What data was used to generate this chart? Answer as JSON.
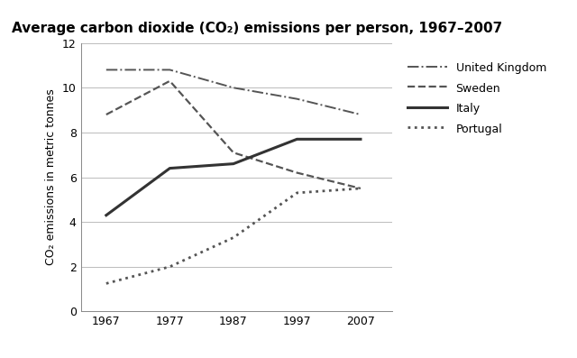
{
  "title": "Average carbon dioxide (CO₂) emissions per person, 1967–2007",
  "ylabel": "CO₂ emissions in metric tonnes",
  "years": [
    1967,
    1977,
    1987,
    1997,
    2007
  ],
  "series": {
    "United Kingdom": {
      "values": [
        10.8,
        10.8,
        10.0,
        9.5,
        8.8
      ],
      "linestyle": "dashdot",
      "linewidth": 1.4,
      "color": "#555555"
    },
    "Sweden": {
      "values": [
        8.8,
        10.3,
        7.1,
        6.2,
        5.5
      ],
      "linestyle": "dashed",
      "linewidth": 1.6,
      "color": "#555555"
    },
    "Italy": {
      "values": [
        4.3,
        6.4,
        6.6,
        7.7,
        7.7
      ],
      "linestyle": "solid",
      "linewidth": 2.2,
      "color": "#333333"
    },
    "Portugal": {
      "values": [
        1.25,
        2.0,
        3.3,
        5.3,
        5.5
      ],
      "linestyle": "dotted",
      "linewidth": 2.0,
      "color": "#555555"
    }
  },
  "xlim": [
    1963,
    2012
  ],
  "ylim": [
    0,
    12
  ],
  "yticks": [
    0,
    2,
    4,
    6,
    8,
    10,
    12
  ],
  "xticks": [
    1967,
    1977,
    1987,
    1997,
    2007
  ],
  "background_color": "#ffffff",
  "grid_color": "#bbbbbb",
  "title_fontsize": 11,
  "label_fontsize": 9,
  "tick_fontsize": 9,
  "legend_fontsize": 9
}
